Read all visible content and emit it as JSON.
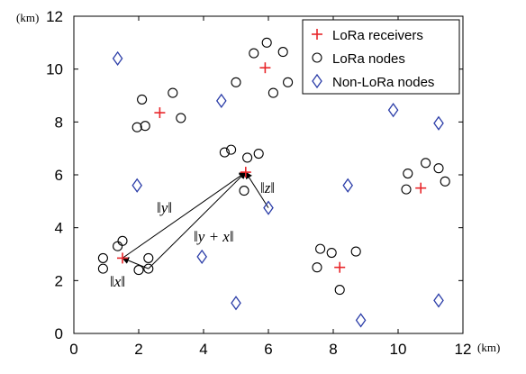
{
  "chart_data": {
    "type": "scatter",
    "xlim": [
      0,
      12
    ],
    "ylim": [
      0,
      12
    ],
    "x_ticks": [
      0,
      2,
      4,
      6,
      8,
      10,
      12
    ],
    "y_ticks": [
      0,
      2,
      4,
      6,
      8,
      10,
      12
    ],
    "x_tick_labels": [
      "0",
      "2",
      "4",
      "6",
      "8",
      "10",
      "12"
    ],
    "y_tick_labels": [
      "0",
      "2",
      "4",
      "6",
      "8",
      "10",
      "12"
    ],
    "x_unit": "(km)",
    "y_unit": "(km)",
    "grid": false,
    "legend_position": "top-right",
    "series": [
      {
        "name": "LoRa receivers",
        "marker": "plus",
        "color": "#e8262a",
        "points": [
          [
            1.5,
            2.85
          ],
          [
            2.65,
            8.35
          ],
          [
            5.3,
            6.1
          ],
          [
            5.9,
            10.05
          ],
          [
            8.2,
            2.5
          ],
          [
            10.7,
            5.5
          ]
        ]
      },
      {
        "name": "LoRa nodes",
        "marker": "circle",
        "color": "#000000",
        "points": [
          [
            0.9,
            2.85
          ],
          [
            0.9,
            2.45
          ],
          [
            1.35,
            3.3
          ],
          [
            1.5,
            3.5
          ],
          [
            2.0,
            2.4
          ],
          [
            2.3,
            2.45
          ],
          [
            2.3,
            2.85
          ],
          [
            2.1,
            8.85
          ],
          [
            1.95,
            7.8
          ],
          [
            2.2,
            7.85
          ],
          [
            3.05,
            9.1
          ],
          [
            3.3,
            8.15
          ],
          [
            4.65,
            6.85
          ],
          [
            4.85,
            6.95
          ],
          [
            5.35,
            6.65
          ],
          [
            5.7,
            6.8
          ],
          [
            5.25,
            5.4
          ],
          [
            5.55,
            10.6
          ],
          [
            5.0,
            9.5
          ],
          [
            5.95,
            11.0
          ],
          [
            6.15,
            9.1
          ],
          [
            6.45,
            10.65
          ],
          [
            6.6,
            9.5
          ],
          [
            7.5,
            2.5
          ],
          [
            7.6,
            3.2
          ],
          [
            7.95,
            3.05
          ],
          [
            8.7,
            3.1
          ],
          [
            8.2,
            1.65
          ],
          [
            10.3,
            6.05
          ],
          [
            10.25,
            5.45
          ],
          [
            10.85,
            6.45
          ],
          [
            11.25,
            6.25
          ],
          [
            11.45,
            5.75
          ]
        ]
      },
      {
        "name": "Non-LoRa nodes",
        "marker": "diamond",
        "color": "#2b3da8",
        "points": [
          [
            1.35,
            10.4
          ],
          [
            1.95,
            5.6
          ],
          [
            3.95,
            2.9
          ],
          [
            4.55,
            8.8
          ],
          [
            5.0,
            1.15
          ],
          [
            6.0,
            4.75
          ],
          [
            8.45,
            5.6
          ],
          [
            8.85,
            0.5
          ],
          [
            9.85,
            8.45
          ],
          [
            11.25,
            7.95
          ],
          [
            11.25,
            1.25
          ]
        ]
      }
    ],
    "annotations": [
      {
        "label": "‖x‖"
      },
      {
        "label": "‖y‖"
      },
      {
        "label": "‖y + x‖"
      },
      {
        "label": "‖z‖"
      }
    ],
    "vectors": [
      {
        "name": "x",
        "from": [
          2.3,
          2.45
        ],
        "to": [
          1.5,
          2.85
        ]
      },
      {
        "name": "y",
        "from": [
          1.5,
          2.85
        ],
        "to": [
          5.3,
          6.1
        ]
      },
      {
        "name": "y_plus_x",
        "from": [
          2.3,
          2.45
        ],
        "to": [
          5.3,
          6.1
        ]
      },
      {
        "name": "z",
        "from": [
          6.0,
          4.75
        ],
        "to": [
          5.3,
          6.1
        ]
      }
    ]
  }
}
